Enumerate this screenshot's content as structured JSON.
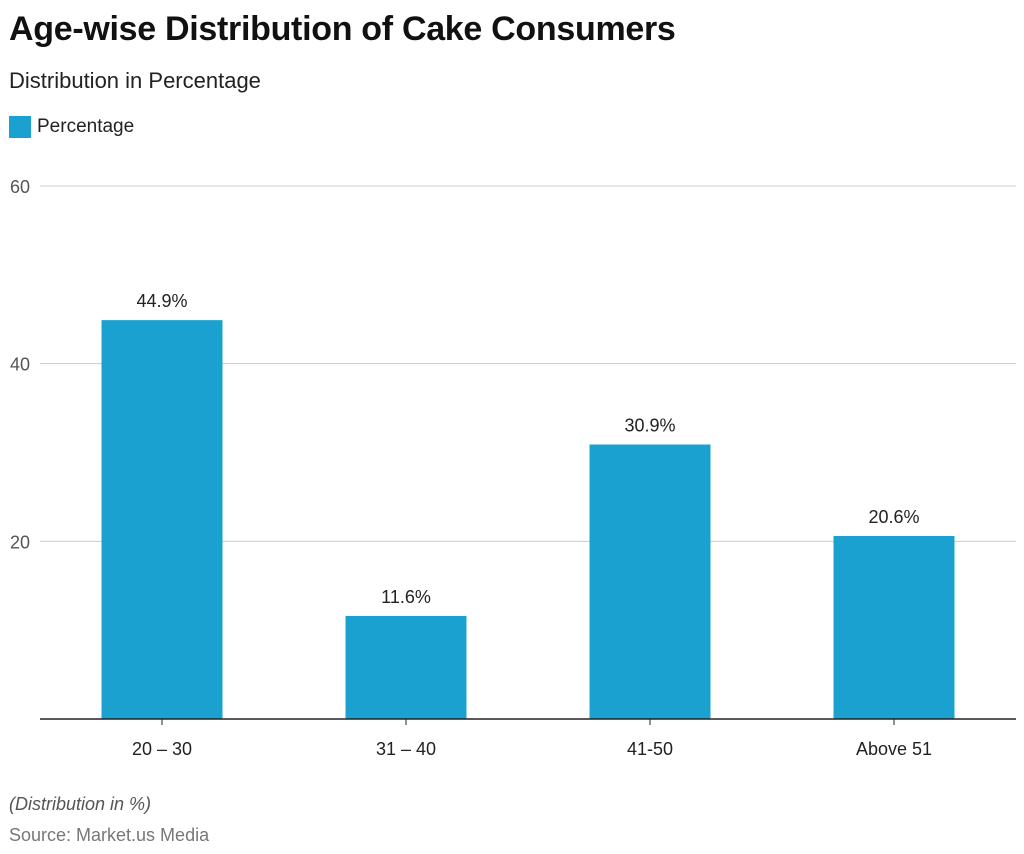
{
  "chart_data": {
    "type": "bar",
    "title": "Age-wise Distribution of Cake Consumers",
    "subtitle": "Distribution in Percentage",
    "categories": [
      "20 – 30",
      "31 – 40",
      "41-50",
      "Above 51"
    ],
    "series": [
      {
        "name": "Percentage",
        "values": [
          44.9,
          11.6,
          30.9,
          20.6
        ]
      }
    ],
    "data_labels": [
      "44.9%",
      "11.6%",
      "30.9%",
      "20.6%"
    ],
    "yticks": [
      20,
      40,
      60
    ],
    "ylim": [
      0,
      60
    ],
    "grid": true,
    "legend": "top-left",
    "xlabel": "",
    "ylabel": "",
    "colors": {
      "bar": "#1aa1cf"
    }
  },
  "footer": {
    "note": "(Distribution in %)",
    "source": "Source: Market.us Media"
  }
}
